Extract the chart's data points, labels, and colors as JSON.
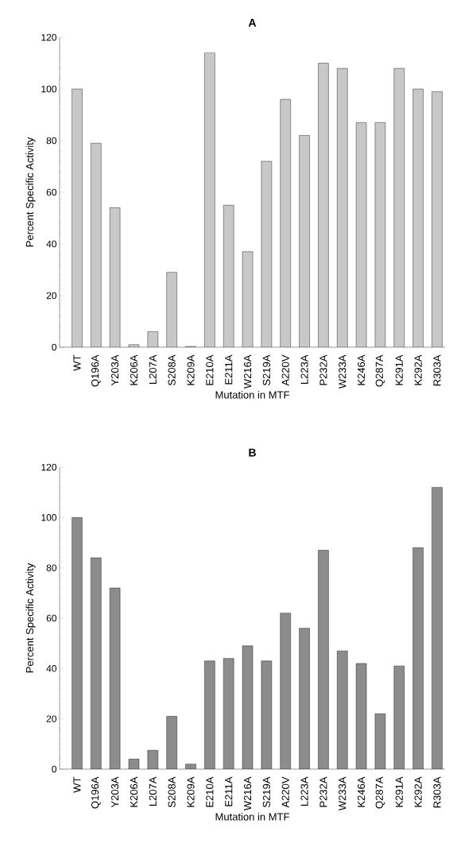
{
  "chart_data": [
    {
      "type": "bar",
      "title": "A",
      "xlabel": "Mutation in MTF",
      "ylabel": "Percent Specific  Activity",
      "categories": [
        "WT",
        "Q196A",
        "Y203A",
        "K206A",
        "L207A",
        "S208A",
        "K209A",
        "E210A",
        "E211A",
        "W216A",
        "S219A",
        "A220V",
        "L223A",
        "P232A",
        "W233A",
        "K246A",
        "Q287A",
        "K291A",
        "K292A",
        "R303A"
      ],
      "values": [
        100,
        79,
        54,
        1,
        6,
        29,
        0.3,
        114,
        55,
        37,
        72,
        96,
        82,
        110,
        108,
        87,
        87,
        108,
        100,
        99
      ],
      "color": "#c8c8c8",
      "ylim": [
        0,
        120
      ],
      "yticks": [
        0,
        20,
        40,
        60,
        80,
        100,
        120
      ]
    },
    {
      "type": "bar",
      "title": "B",
      "xlabel": "Mutation in MTF",
      "ylabel": "Percent Specific  Activity",
      "categories": [
        "WT",
        "Q196A",
        "Y203A",
        "K206A",
        "L207A",
        "S208A",
        "K209A",
        "E210A",
        "E211A",
        "W216A",
        "S219A",
        "A220V",
        "L223A",
        "P232A",
        "W233A",
        "K246A",
        "Q287A",
        "K291A",
        "K292A",
        "R303A"
      ],
      "values": [
        100,
        84,
        72,
        4,
        7.5,
        21,
        2,
        43,
        44,
        49,
        43,
        62,
        56,
        87,
        47,
        42,
        22,
        41,
        88,
        112
      ],
      "color": "#8c8c8c",
      "ylim": [
        0,
        120
      ],
      "yticks": [
        0,
        20,
        40,
        60,
        80,
        100,
        120
      ]
    }
  ]
}
